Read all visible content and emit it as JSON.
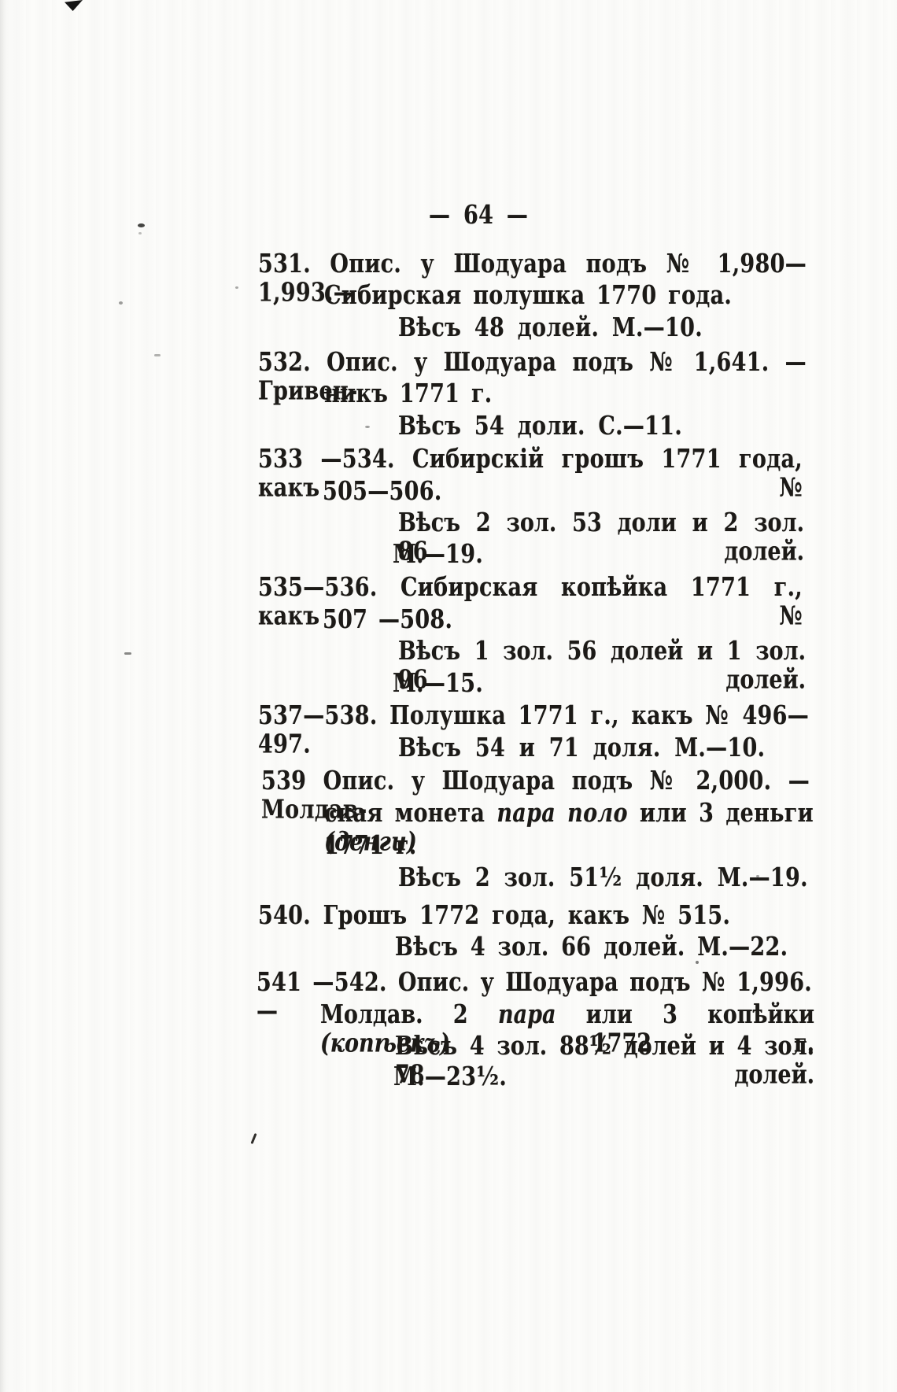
{
  "page_header": {
    "page_number": "— 64 —"
  },
  "entries": [
    {
      "number": "531",
      "lines": [
        {
          "text": "531. Опис. у Шодуара подъ № 1,980—1,993.—"
        },
        {
          "text": "Сибирская полушка 1770 года."
        },
        {
          "text": "Вѣсъ 48 долей. М.—10."
        }
      ]
    },
    {
      "number": "532",
      "lines": [
        {
          "text": "532. Опис. у Шодуара подъ № 1,641. — Гривен-"
        },
        {
          "text": "никъ 1771 г."
        },
        {
          "text": "Вѣсъ 54 доли. С.—11."
        }
      ]
    },
    {
      "number": "533—534",
      "lines": [
        {
          "text": "533 —534. Сибирскій грошъ 1771 года, какъ №"
        },
        {
          "text": "505—506."
        },
        {
          "text": "Вѣсъ 2 зол. 53 доли и 2 зол. 86 долей."
        },
        {
          "text": "М.—19."
        }
      ]
    },
    {
      "number": "535—536",
      "lines": [
        {
          "text": "535—536. Сибирская копѣйка 1771 г., какъ №"
        },
        {
          "text": "507 —508."
        },
        {
          "text": "Вѣсъ 1 зол. 56 долей и 1 зол. 96 долей."
        },
        {
          "text": "М.—15."
        }
      ]
    },
    {
      "number": "537—538",
      "lines": [
        {
          "text": "537—538. Полушка 1771 г., какъ № 496—497."
        },
        {
          "text": "Вѣсъ 54 и 71 доля. М.—10."
        }
      ]
    },
    {
      "number": "539",
      "lines": [
        {
          "text": "539 Опис. у Шодуара подъ № 2,000. — Молдав-"
        },
        {
          "segments": [
            {
              "t": "ская монета ",
              "i": 0
            },
            {
              "t": "пара поло",
              "i": 1
            },
            {
              "t": " или 3 деньги ",
              "i": 0
            },
            {
              "t": "(денги)",
              "i": 1
            }
          ]
        },
        {
          "text": "1771 г."
        },
        {
          "text": "Вѣсъ 2 зол. 51¹⁄₂ доля. М.—19."
        }
      ]
    },
    {
      "number": "540",
      "lines": [
        {
          "text": "540. Грошъ 1772 года, какъ № 515."
        },
        {
          "text": "Вѣсъ 4 зол. 66 долей. М.—22."
        }
      ]
    },
    {
      "number": "541—542",
      "lines": [
        {
          "text": "541 —542. Опис. у Шодуара подъ № 1,996.—"
        },
        {
          "segments": [
            {
              "t": "Молдав. 2 ",
              "i": 0
            },
            {
              "t": "пара",
              "i": 1
            },
            {
              "t": " или 3 копѣйки ",
              "i": 0
            },
            {
              "t": "(копѣекъ)",
              "i": 1
            },
            {
              "t": " 1772 г.",
              "i": 0
            }
          ]
        },
        {
          "text": "Вѣсъ 4 зол. 88¹⁄₂ долей и 4 зол. 78 долей."
        },
        {
          "text": "М.—23¹⁄₂."
        }
      ]
    }
  ]
}
